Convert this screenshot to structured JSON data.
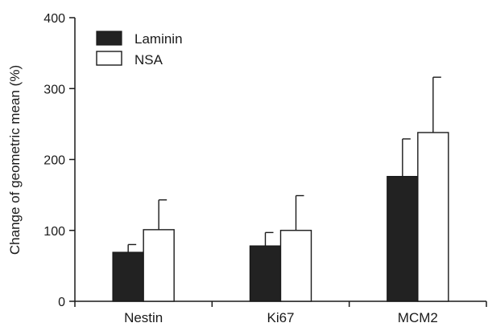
{
  "chart_data": {
    "type": "bar",
    "title": "",
    "xlabel": "",
    "ylabel": "Change of geometric mean (%)",
    "ylim": [
      0,
      400
    ],
    "yticks": [
      0,
      100,
      200,
      300,
      400
    ],
    "categories": [
      "Nestin",
      "Ki67",
      "MCM2"
    ],
    "series": [
      {
        "name": "Laminin",
        "values": [
          69,
          78,
          176
        ],
        "errors": [
          11,
          19,
          53
        ],
        "color": "#222222"
      },
      {
        "name": "NSA",
        "values": [
          101,
          100,
          238
        ],
        "errors": [
          42,
          49,
          78
        ],
        "color": "#ffffff"
      }
    ],
    "legend_position": "top-left",
    "grid": false
  }
}
